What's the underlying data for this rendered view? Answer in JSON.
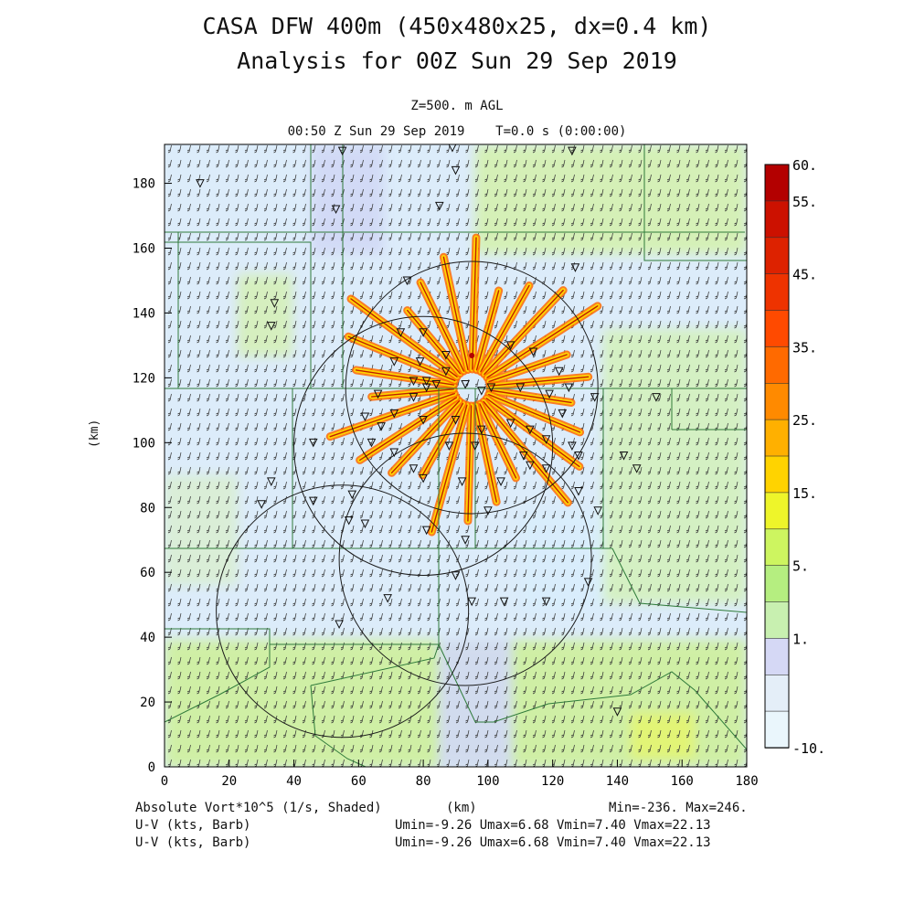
{
  "header": {
    "title_line1": "CASA DFW 400m (450x480x25, dx=0.4 km)",
    "title_line2": "Analysis for 00Z Sun 29 Sep 2019",
    "level": "Z=500. m AGL",
    "valid_time": "00:50 Z Sun 29 Sep 2019    T=0.0 s (0:00:00)"
  },
  "axes": {
    "x_ticks": [
      "0",
      "20",
      "40",
      "60",
      "80",
      "100",
      "120",
      "140",
      "160",
      "180"
    ],
    "y_ticks": [
      "0",
      "20",
      "40",
      "60",
      "80",
      "100",
      "120",
      "140",
      "160",
      "180"
    ],
    "x_label": "(km)",
    "y_label": "(km)",
    "xlim": [
      0,
      180
    ],
    "ylim": [
      0,
      192
    ]
  },
  "colorbar": {
    "labels": [
      "60.",
      "55.",
      "45.",
      "35.",
      "25.",
      "15.",
      "5.",
      "1.",
      "-10."
    ],
    "colors": [
      "#b30000",
      "#cc1100",
      "#dd2200",
      "#ee3300",
      "#ff4a00",
      "#ff6a00",
      "#ff8a00",
      "#ffb000",
      "#ffd300",
      "#eef52a",
      "#cdf560",
      "#b5ee80",
      "#c8f0b0",
      "#d5d8f5",
      "#e4eef8",
      "#eaf6fc"
    ]
  },
  "footer": {
    "field_label": "Absolute Vort*10^5 (1/s, Shaded)",
    "barb1_label": "U-V (kts, Barb)",
    "barb2_label": "U-V (kts, Barb)",
    "x_unit": "(km)",
    "minmax": "Min=-236. Max=246.",
    "uv_stats1": "Umin=-9.26 Umax=6.68 Vmin=7.40 Vmax=22.13",
    "uv_stats2": "Umin=-9.26 Umax=6.68 Vmin=7.40 Vmax=22.13"
  },
  "map": {
    "radar_rings_km": [
      {
        "cx": 95,
        "cy": 117,
        "r": 39
      },
      {
        "cx": 80,
        "cy": 99,
        "r": 40
      },
      {
        "cx": 93,
        "cy": 64,
        "r": 39
      },
      {
        "cx": 55,
        "cy": 48,
        "r": 39
      }
    ],
    "station_marker": "▽",
    "stations_km": [
      [
        11,
        180
      ],
      [
        55,
        190
      ],
      [
        89,
        191
      ],
      [
        90,
        184
      ],
      [
        126,
        190
      ],
      [
        53,
        172
      ],
      [
        85,
        173
      ],
      [
        75,
        150
      ],
      [
        127,
        154
      ],
      [
        34,
        143
      ],
      [
        33,
        136
      ],
      [
        73,
        134
      ],
      [
        80,
        134
      ],
      [
        71,
        125
      ],
      [
        79,
        125
      ],
      [
        87,
        127
      ],
      [
        107,
        130
      ],
      [
        114,
        128
      ],
      [
        122,
        122
      ],
      [
        77,
        119
      ],
      [
        66,
        115
      ],
      [
        77,
        114
      ],
      [
        81,
        119
      ],
      [
        87,
        122
      ],
      [
        93,
        118
      ],
      [
        101,
        117
      ],
      [
        110,
        117
      ],
      [
        119,
        115
      ],
      [
        125,
        117
      ],
      [
        133,
        114
      ],
      [
        152,
        114
      ],
      [
        62,
        108
      ],
      [
        71,
        109
      ],
      [
        80,
        107
      ],
      [
        90,
        107
      ],
      [
        98,
        104
      ],
      [
        107,
        106
      ],
      [
        113,
        104
      ],
      [
        118,
        101
      ],
      [
        126,
        99
      ],
      [
        67,
        105
      ],
      [
        64,
        100
      ],
      [
        46,
        100
      ],
      [
        71,
        97
      ],
      [
        88,
        99
      ],
      [
        96,
        99
      ],
      [
        111,
        96
      ],
      [
        128,
        96
      ],
      [
        142,
        96
      ],
      [
        146,
        92
      ],
      [
        113,
        93
      ],
      [
        118,
        92
      ],
      [
        77,
        92
      ],
      [
        80,
        89
      ],
      [
        92,
        88
      ],
      [
        104,
        88
      ],
      [
        33,
        88
      ],
      [
        30,
        81
      ],
      [
        58,
        84
      ],
      [
        46,
        82
      ],
      [
        57,
        76
      ],
      [
        62,
        75
      ],
      [
        100,
        79
      ],
      [
        81,
        73
      ],
      [
        128,
        85
      ],
      [
        134,
        79
      ],
      [
        93,
        70
      ],
      [
        90,
        59
      ],
      [
        95,
        51
      ],
      [
        105,
        51
      ],
      [
        118,
        51
      ],
      [
        131,
        57
      ],
      [
        69,
        52
      ],
      [
        54,
        44
      ],
      [
        140,
        17
      ],
      [
        81,
        117
      ],
      [
        84,
        118
      ],
      [
        98,
        116
      ],
      [
        123,
        109
      ]
    ]
  }
}
